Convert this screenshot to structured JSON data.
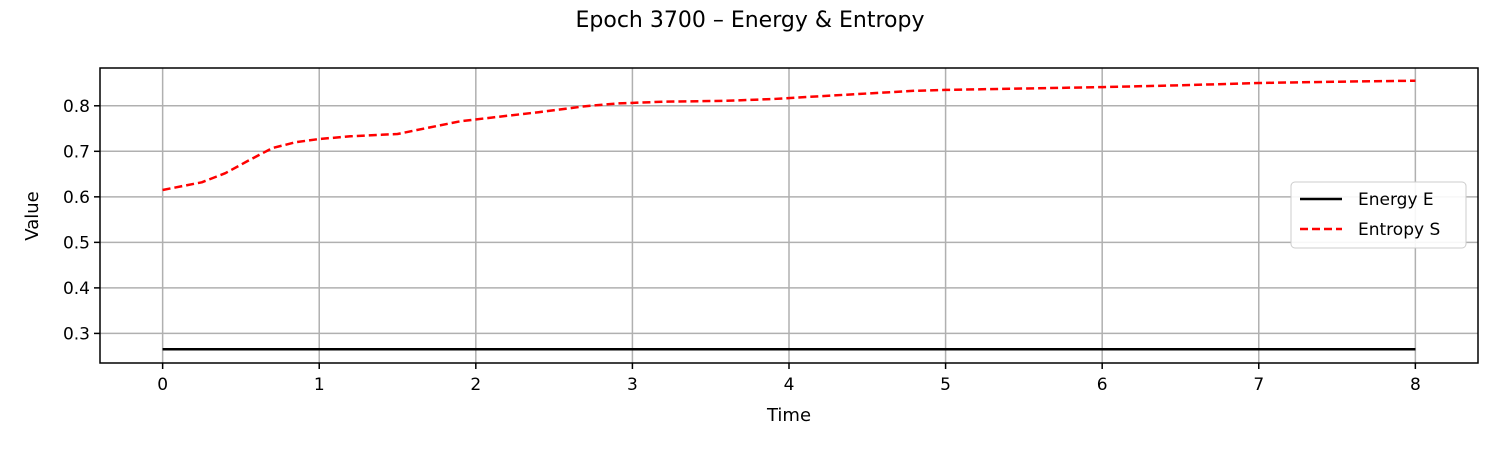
{
  "chart_data": {
    "type": "line",
    "title": "Epoch 3700 – Energy & Entropy",
    "xlabel": "Time",
    "ylabel": "Value",
    "xlim": [
      -0.4,
      8.4
    ],
    "ylim": [
      0.235,
      0.883
    ],
    "xticks": [
      0,
      1,
      2,
      3,
      4,
      5,
      6,
      7,
      8
    ],
    "yticks": [
      0.3,
      0.4,
      0.5,
      0.6,
      0.7,
      0.8
    ],
    "grid": true,
    "legend_position": "center-right",
    "series": [
      {
        "name": "Energy E",
        "color": "#000000",
        "style": "solid",
        "x": [
          0,
          8
        ],
        "y": [
          0.265,
          0.265
        ]
      },
      {
        "name": "Entropy S",
        "color": "#ff0000",
        "style": "dashed",
        "x": [
          0,
          0.25,
          0.4,
          0.55,
          0.7,
          0.85,
          1.0,
          1.2,
          1.5,
          1.7,
          1.9,
          2.1,
          2.4,
          2.7,
          2.9,
          3.2,
          3.6,
          3.9,
          4.2,
          4.5,
          4.8,
          5.0,
          5.5,
          6.0,
          6.5,
          7.0,
          7.5,
          8.0
        ],
        "y": [
          0.615,
          0.632,
          0.652,
          0.68,
          0.707,
          0.72,
          0.727,
          0.733,
          0.738,
          0.752,
          0.766,
          0.774,
          0.786,
          0.799,
          0.805,
          0.809,
          0.811,
          0.815,
          0.821,
          0.827,
          0.833,
          0.835,
          0.838,
          0.841,
          0.845,
          0.85,
          0.853,
          0.855
        ]
      }
    ]
  }
}
